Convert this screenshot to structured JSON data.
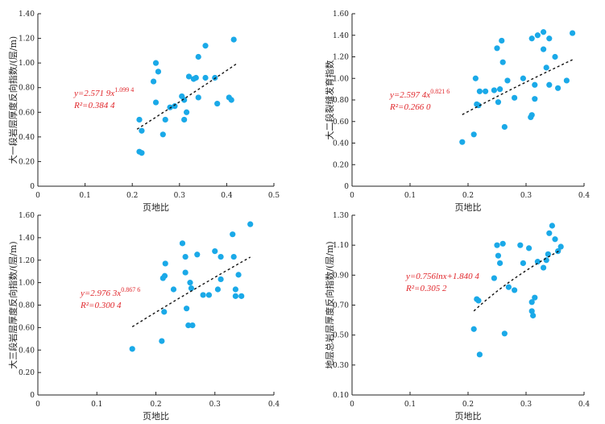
{
  "chart_data": [
    {
      "type": "scatter",
      "xlabel": "页地比",
      "ylabel": "大一段岩层厚度反向指数/(层/m)",
      "xlim": [
        0,
        0.5
      ],
      "ylim": [
        0,
        1.4
      ],
      "xticks": [
        "0",
        "0.1",
        "0.2",
        "0.3",
        "0.4",
        "0.5"
      ],
      "yticks": [
        "0",
        "0.20",
        "0.40",
        "0.60",
        "0.80",
        "1.00",
        "1.20",
        "1.40"
      ],
      "equation": "y=2.571 9x^1.099 4",
      "eq_line1": "y=2.571 9x",
      "eq_exp": "1.099 4",
      "eq_line2": "R²=0.384 4",
      "trend": {
        "kind": "power",
        "a": 2.5719,
        "b": 1.0994,
        "x_range": [
          0.21,
          0.42
        ]
      },
      "marker_color": "#1aa9e8",
      "points": [
        [
          0.215,
          0.28
        ],
        [
          0.22,
          0.27
        ],
        [
          0.215,
          0.54
        ],
        [
          0.22,
          0.45
        ],
        [
          0.245,
          0.85
        ],
        [
          0.25,
          1.0
        ],
        [
          0.255,
          0.93
        ],
        [
          0.25,
          0.68
        ],
        [
          0.265,
          0.42
        ],
        [
          0.27,
          0.54
        ],
        [
          0.28,
          0.64
        ],
        [
          0.29,
          0.65
        ],
        [
          0.305,
          0.73
        ],
        [
          0.31,
          0.7
        ],
        [
          0.31,
          0.54
        ],
        [
          0.315,
          0.6
        ],
        [
          0.32,
          0.89
        ],
        [
          0.33,
          0.87
        ],
        [
          0.335,
          0.88
        ],
        [
          0.34,
          1.05
        ],
        [
          0.34,
          0.72
        ],
        [
          0.355,
          0.88
        ],
        [
          0.355,
          1.14
        ],
        [
          0.375,
          0.88
        ],
        [
          0.38,
          0.67
        ],
        [
          0.405,
          0.72
        ],
        [
          0.41,
          0.7
        ],
        [
          0.415,
          1.19
        ]
      ]
    },
    {
      "type": "scatter",
      "xlabel": "页地比",
      "ylabel": "大二段裂缝发育指数",
      "xlim": [
        0,
        0.4
      ],
      "ylim": [
        0,
        1.6
      ],
      "xticks": [
        "0",
        "0.1",
        "0.2",
        "0.3",
        "0.4"
      ],
      "yticks": [
        "0",
        "0.20",
        "0.40",
        "0.60",
        "0.80",
        "1.00",
        "1.20",
        "1.40",
        "1.60"
      ],
      "equation": "y=2.597 4x^0.821 6",
      "eq_line1": "y=2.597 4x",
      "eq_exp": "0.821 6",
      "eq_line2": "R²=0.266 0",
      "trend": {
        "kind": "power",
        "a": 2.5974,
        "b": 0.8216,
        "x_range": [
          0.19,
          0.38
        ]
      },
      "marker_color": "#1aa9e8",
      "points": [
        [
          0.19,
          0.41
        ],
        [
          0.21,
          0.48
        ],
        [
          0.213,
          1.0
        ],
        [
          0.215,
          0.76
        ],
        [
          0.218,
          0.75
        ],
        [
          0.22,
          0.88
        ],
        [
          0.23,
          0.88
        ],
        [
          0.245,
          0.89
        ],
        [
          0.25,
          1.28
        ],
        [
          0.252,
          0.78
        ],
        [
          0.255,
          0.9
        ],
        [
          0.258,
          1.35
        ],
        [
          0.26,
          1.15
        ],
        [
          0.263,
          0.55
        ],
        [
          0.268,
          0.98
        ],
        [
          0.28,
          0.82
        ],
        [
          0.295,
          1.0
        ],
        [
          0.308,
          0.64
        ],
        [
          0.31,
          0.66
        ],
        [
          0.31,
          1.37
        ],
        [
          0.315,
          0.94
        ],
        [
          0.315,
          0.81
        ],
        [
          0.32,
          1.4
        ],
        [
          0.33,
          1.43
        ],
        [
          0.33,
          1.27
        ],
        [
          0.335,
          1.1
        ],
        [
          0.34,
          0.94
        ],
        [
          0.34,
          1.37
        ],
        [
          0.35,
          1.2
        ],
        [
          0.355,
          0.91
        ],
        [
          0.37,
          0.98
        ],
        [
          0.38,
          1.42
        ]
      ]
    },
    {
      "type": "scatter",
      "xlabel": "页地比",
      "ylabel": "大三段岩层厚度反向指数/(层/m)",
      "xlim": [
        0,
        0.4
      ],
      "ylim": [
        0,
        1.6
      ],
      "xticks": [
        "0",
        "0.1",
        "0.2",
        "0.3",
        "0.4"
      ],
      "yticks": [
        "0",
        "0.20",
        "0.40",
        "0.60",
        "0.80",
        "1.00",
        "1.20",
        "1.40",
        "1.60"
      ],
      "equation": "y=2.976 3x^0.867 6",
      "eq_line1": "y=2.976 3x",
      "eq_exp": "0.867 6",
      "eq_line2": "R²=0.300 4",
      "trend": {
        "kind": "power",
        "a": 2.9763,
        "b": 0.8676,
        "x_range": [
          0.16,
          0.36
        ]
      },
      "marker_color": "#1aa9e8",
      "points": [
        [
          0.16,
          0.41
        ],
        [
          0.21,
          0.48
        ],
        [
          0.212,
          1.04
        ],
        [
          0.214,
          0.74
        ],
        [
          0.215,
          1.06
        ],
        [
          0.216,
          1.17
        ],
        [
          0.23,
          0.94
        ],
        [
          0.245,
          1.35
        ],
        [
          0.25,
          1.23
        ],
        [
          0.25,
          1.09
        ],
        [
          0.252,
          0.77
        ],
        [
          0.255,
          0.62
        ],
        [
          0.258,
          1.0
        ],
        [
          0.26,
          0.95
        ],
        [
          0.262,
          0.62
        ],
        [
          0.27,
          1.25
        ],
        [
          0.28,
          0.89
        ],
        [
          0.29,
          0.89
        ],
        [
          0.3,
          1.28
        ],
        [
          0.305,
          0.94
        ],
        [
          0.31,
          1.03
        ],
        [
          0.31,
          1.23
        ],
        [
          0.33,
          1.43
        ],
        [
          0.332,
          1.23
        ],
        [
          0.335,
          0.94
        ],
        [
          0.335,
          0.88
        ],
        [
          0.34,
          1.07
        ],
        [
          0.345,
          0.88
        ],
        [
          0.36,
          1.52
        ]
      ]
    },
    {
      "type": "scatter",
      "xlabel": "页地比",
      "ylabel": "地层总岩层厚度反向指数/(层/m)",
      "xlim": [
        0,
        0.4
      ],
      "ylim": [
        0.1,
        1.3
      ],
      "xticks": [
        "0",
        "0.1",
        "0.2",
        "0.3",
        "0.4"
      ],
      "yticks": [
        "0.10",
        "0.30",
        "0.50",
        "0.70",
        "0.90",
        "1.10",
        "1.30"
      ],
      "equation": "y=0.756lnx+1.840 4",
      "eq_line1": "y=0.756lnx+1.840 4",
      "eq_exp": "",
      "eq_line2": "R²=0.305 2",
      "trend": {
        "kind": "log",
        "a": 0.756,
        "b": 1.8404,
        "x_range": [
          0.21,
          0.36
        ]
      },
      "marker_color": "#1aa9e8",
      "points": [
        [
          0.21,
          0.54
        ],
        [
          0.215,
          0.74
        ],
        [
          0.218,
          0.73
        ],
        [
          0.22,
          0.37
        ],
        [
          0.245,
          0.88
        ],
        [
          0.25,
          1.1
        ],
        [
          0.252,
          1.03
        ],
        [
          0.255,
          0.98
        ],
        [
          0.26,
          1.11
        ],
        [
          0.263,
          0.51
        ],
        [
          0.27,
          0.82
        ],
        [
          0.28,
          0.8
        ],
        [
          0.29,
          1.1
        ],
        [
          0.295,
          0.98
        ],
        [
          0.305,
          1.08
        ],
        [
          0.31,
          0.72
        ],
        [
          0.31,
          0.66
        ],
        [
          0.312,
          0.63
        ],
        [
          0.315,
          0.75
        ],
        [
          0.32,
          0.99
        ],
        [
          0.33,
          0.95
        ],
        [
          0.335,
          1.0
        ],
        [
          0.338,
          1.04
        ],
        [
          0.34,
          1.18
        ],
        [
          0.345,
          1.23
        ],
        [
          0.35,
          1.14
        ],
        [
          0.355,
          1.06
        ],
        [
          0.36,
          1.09
        ]
      ]
    }
  ]
}
